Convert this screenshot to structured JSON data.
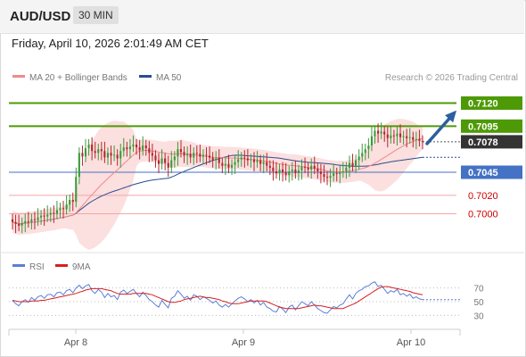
{
  "header": {
    "symbol": "AUD/USD",
    "timeframe": "30 MIN",
    "datetime": "Friday, April 10, 2026 2:01:49 AM CET"
  },
  "legend": {
    "ma20": {
      "label": "MA 20 + Bollinger Bands",
      "color": "#f08a8a"
    },
    "ma50": {
      "label": "MA 50",
      "color": "#2a4d8f"
    },
    "copyright": "Research © 2026 Trading Central"
  },
  "rsi_legend": {
    "rsi": {
      "label": "RSI",
      "color": "#5a7fd6"
    },
    "ma9": {
      "label": "9MA",
      "color": "#d61f1f"
    }
  },
  "colors": {
    "up_candle": "#3a9a3a",
    "down_candle": "#b3262e",
    "resistance": "#4e9a06",
    "pivot": "#4472c4",
    "support": "#f4a6a6",
    "support_text": "#cc0000",
    "arrow": "#2d5e9e",
    "band_fill": "#fbd7d7"
  },
  "chart_data": [
    {
      "type": "candlestick",
      "ylim": [
        0.6955,
        0.7135
      ],
      "x_tick_labels": [
        "Apr 8",
        "Apr 9",
        "Apr 10"
      ],
      "current_price": "0.7078",
      "levels": [
        {
          "value": 0.712,
          "label": "0.7120",
          "kind": "resistance"
        },
        {
          "value": 0.7095,
          "label": "0.7095",
          "kind": "resistance"
        },
        {
          "value": 0.7045,
          "label": "0.7045",
          "kind": "pivot"
        },
        {
          "value": 0.702,
          "label": "0.7020",
          "kind": "support"
        },
        {
          "value": 0.7,
          "label": "0.7000",
          "kind": "support"
        }
      ],
      "projection": {
        "from": 0.7076,
        "to": 0.7112
      },
      "candles_close": [
        0.6991,
        0.6989,
        0.6987,
        0.699,
        0.6992,
        0.6991,
        0.6994,
        0.6993,
        0.6996,
        0.6998,
        0.6997,
        0.6999,
        0.7001,
        0.7,
        0.7004,
        0.7006,
        0.7005,
        0.701,
        0.7015,
        0.7013,
        0.704,
        0.7066,
        0.7062,
        0.7071,
        0.7075,
        0.7068,
        0.7066,
        0.707,
        0.7068,
        0.7061,
        0.7066,
        0.7063,
        0.7064,
        0.706,
        0.7068,
        0.7072,
        0.707,
        0.7073,
        0.7075,
        0.7072,
        0.7069,
        0.7074,
        0.7071,
        0.7066,
        0.7063,
        0.7058,
        0.7054,
        0.706,
        0.7055,
        0.705,
        0.7058,
        0.7062,
        0.707,
        0.7067,
        0.7063,
        0.7065,
        0.7061,
        0.7066,
        0.7065,
        0.7062,
        0.7064,
        0.7063,
        0.7061,
        0.7058,
        0.706,
        0.7055,
        0.7052,
        0.7054,
        0.705,
        0.7053,
        0.7056,
        0.7059,
        0.7061,
        0.706,
        0.7058,
        0.7059,
        0.7056,
        0.7058,
        0.7054,
        0.7056,
        0.7052,
        0.705,
        0.7046,
        0.7044,
        0.7048,
        0.7045,
        0.7042,
        0.7046,
        0.7048,
        0.7044,
        0.7047,
        0.7051,
        0.705,
        0.7048,
        0.7052,
        0.7049,
        0.7046,
        0.7043,
        0.704,
        0.7039,
        0.7041,
        0.7044,
        0.7043,
        0.7045,
        0.7046,
        0.705,
        0.7055,
        0.7052,
        0.7058,
        0.7062,
        0.7066,
        0.707,
        0.7074,
        0.7084,
        0.709,
        0.7087,
        0.7089,
        0.7086,
        0.7082,
        0.7085,
        0.7084,
        0.7087,
        0.7083,
        0.7084,
        0.7082,
        0.7083,
        0.708,
        0.7081,
        0.7079,
        0.7078
      ]
    },
    {
      "type": "line",
      "title": "RSI",
      "series": [
        {
          "name": "RSI"
        },
        {
          "name": "9MA"
        }
      ],
      "y_tick_labels": [
        "70",
        "50",
        "30"
      ],
      "rsi": [
        52,
        47,
        44,
        50,
        53,
        49,
        56,
        52,
        57,
        59,
        55,
        60,
        61,
        57,
        63,
        64,
        60,
        66,
        68,
        63,
        70,
        74,
        69,
        73,
        75,
        66,
        62,
        68,
        64,
        56,
        62,
        57,
        59,
        53,
        64,
        67,
        62,
        65,
        68,
        62,
        57,
        64,
        59,
        53,
        50,
        45,
        42,
        52,
        46,
        41,
        55,
        58,
        66,
        61,
        55,
        58,
        52,
        60,
        58,
        53,
        57,
        55,
        52,
        48,
        51,
        45,
        42,
        46,
        42,
        47,
        51,
        55,
        57,
        54,
        50,
        53,
        48,
        52,
        45,
        49,
        42,
        40,
        36,
        35,
        43,
        39,
        34,
        42,
        45,
        38,
        44,
        50,
        47,
        44,
        50,
        45,
        40,
        37,
        34,
        33,
        38,
        43,
        41,
        45,
        47,
        54,
        60,
        54,
        62,
        66,
        68,
        72,
        73,
        77,
        79,
        72,
        74,
        68,
        62,
        66,
        64,
        68,
        60,
        62,
        58,
        61,
        55,
        57,
        54,
        53
      ],
      "ma9": [
        52,
        51,
        50,
        50,
        50,
        50,
        51,
        51,
        51,
        52,
        52,
        53,
        54,
        55,
        56,
        57,
        58,
        59,
        60,
        61,
        62,
        64,
        65,
        67,
        68,
        69,
        69,
        69,
        69,
        68,
        67,
        66,
        64,
        62,
        61,
        61,
        61,
        61,
        62,
        62,
        62,
        62,
        62,
        61,
        60,
        58,
        56,
        54,
        52,
        50,
        49,
        49,
        50,
        51,
        53,
        54,
        55,
        56,
        57,
        58,
        57,
        56,
        56,
        55,
        54,
        53,
        51,
        50,
        48,
        47,
        47,
        47,
        48,
        49,
        50,
        51,
        51,
        51,
        51,
        51,
        50,
        48,
        46,
        44,
        42,
        41,
        40,
        40,
        40,
        40,
        40,
        41,
        42,
        43,
        44,
        45,
        44,
        44,
        43,
        42,
        41,
        40,
        40,
        40,
        40,
        42,
        44,
        46,
        48,
        51,
        54,
        57,
        60,
        63,
        66,
        69,
        71,
        72,
        72,
        71,
        70,
        69,
        68,
        67,
        66,
        65,
        63,
        62,
        61,
        60
      ]
    }
  ]
}
